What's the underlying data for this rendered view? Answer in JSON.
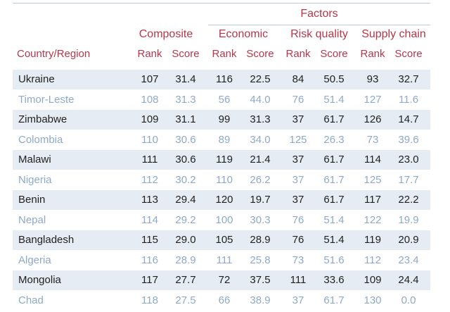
{
  "header": {
    "factors": "Factors",
    "composite": "Composite",
    "economic": "Economic",
    "risk_quality": "Risk quality",
    "supply_chain": "Supply chain",
    "country_region": "Country/Region",
    "rank": "Rank",
    "score": "Score"
  },
  "rows": [
    {
      "country": "Ukraine",
      "c_rank": "107",
      "c_score": "31.4",
      "e_rank": "116",
      "e_score": "22.5",
      "r_rank": "84",
      "r_score": "50.5",
      "s_rank": "93",
      "s_score": "32.7"
    },
    {
      "country": "Timor-Leste",
      "c_rank": "108",
      "c_score": "31.3",
      "e_rank": "56",
      "e_score": "44.0",
      "r_rank": "76",
      "r_score": "51.4",
      "s_rank": "127",
      "s_score": "11.6"
    },
    {
      "country": "Zimbabwe",
      "c_rank": "109",
      "c_score": "31.1",
      "e_rank": "99",
      "e_score": "31.3",
      "r_rank": "37",
      "r_score": "61.7",
      "s_rank": "126",
      "s_score": "14.7"
    },
    {
      "country": "Colombia",
      "c_rank": "110",
      "c_score": "30.6",
      "e_rank": "89",
      "e_score": "34.0",
      "r_rank": "125",
      "r_score": "26.3",
      "s_rank": "73",
      "s_score": "39.6"
    },
    {
      "country": "Malawi",
      "c_rank": "111",
      "c_score": "30.6",
      "e_rank": "119",
      "e_score": "21.4",
      "r_rank": "37",
      "r_score": "61.7",
      "s_rank": "114",
      "s_score": "23.0"
    },
    {
      "country": "Nigeria",
      "c_rank": "112",
      "c_score": "30.2",
      "e_rank": "110",
      "e_score": "26.2",
      "r_rank": "37",
      "r_score": "61.7",
      "s_rank": "125",
      "s_score": "17.7"
    },
    {
      "country": "Benin",
      "c_rank": "113",
      "c_score": "29.4",
      "e_rank": "120",
      "e_score": "19.7",
      "r_rank": "37",
      "r_score": "61.7",
      "s_rank": "117",
      "s_score": "22.2"
    },
    {
      "country": "Nepal",
      "c_rank": "114",
      "c_score": "29.2",
      "e_rank": "100",
      "e_score": "30.3",
      "r_rank": "76",
      "r_score": "51.4",
      "s_rank": "122",
      "s_score": "19.9"
    },
    {
      "country": "Bangladesh",
      "c_rank": "115",
      "c_score": "29.0",
      "e_rank": "105",
      "e_score": "28.9",
      "r_rank": "76",
      "r_score": "51.4",
      "s_rank": "119",
      "s_score": "20.9"
    },
    {
      "country": "Algeria",
      "c_rank": "116",
      "c_score": "28.9",
      "e_rank": "111",
      "e_score": "25.8",
      "r_rank": "73",
      "r_score": "51.6",
      "s_rank": "112",
      "s_score": "23.4"
    },
    {
      "country": "Mongolia",
      "c_rank": "117",
      "c_score": "27.7",
      "e_rank": "72",
      "e_score": "37.5",
      "r_rank": "111",
      "r_score": "33.6",
      "s_rank": "109",
      "s_score": "24.4"
    },
    {
      "country": "Chad",
      "c_rank": "118",
      "c_score": "27.5",
      "e_rank": "66",
      "e_score": "38.9",
      "r_rank": "37",
      "r_score": "61.7",
      "s_rank": "130",
      "s_score": "0.0"
    }
  ],
  "colors": {
    "header_red": "#b5374a",
    "row_shade": "#e6ecf4",
    "dark_text": "#1f1f1f",
    "light_text": "#8fa9c7"
  }
}
